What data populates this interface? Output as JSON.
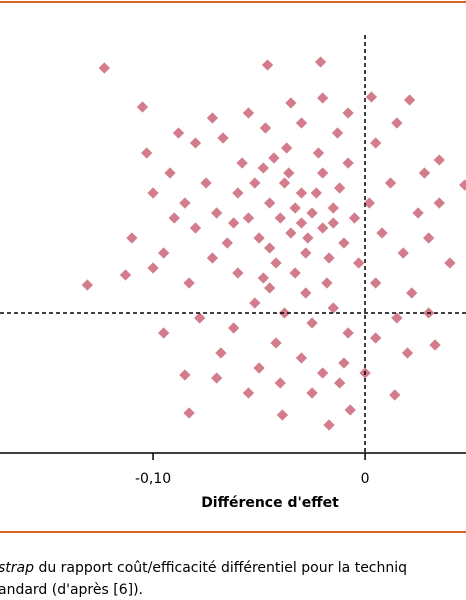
{
  "chart_data": {
    "type": "scatter",
    "color": "#b5263f",
    "x_label": "Différence d'effet",
    "xlim": [
      -0.1722,
      0.0476
    ],
    "ylim": [
      -140,
      310
    ],
    "xticks": [
      {
        "value": -0.1,
        "label": "-0,10"
      },
      0
    ],
    "series": [
      {
        "color": "#b5263f",
        "x": [
          -0.123,
          -0.105,
          -0.046,
          -0.021,
          -0.131,
          -0.083,
          -0.017,
          0.047,
          0.021,
          0.035,
          -0.103,
          -0.113,
          -0.085,
          -0.039,
          -0.007,
          0.014,
          0.033,
          0.003,
          -0.03,
          -0.025,
          -0.035,
          -0.04,
          -0.02,
          -0.045,
          -0.015,
          -0.05,
          -0.03,
          -0.028,
          -0.038,
          -0.01,
          -0.055,
          -0.06,
          -0.02,
          -0.042,
          -0.033,
          -0.012,
          -0.065,
          -0.07,
          -0.005,
          -0.048,
          -0.022,
          -0.037,
          -0.058,
          -0.075,
          -0.08,
          -0.085,
          -0.09,
          0.002,
          0.008,
          0.012,
          0.018,
          0.025,
          0.03,
          -0.003,
          -0.018,
          -0.028,
          -0.045,
          -0.06,
          -0.072,
          -0.052,
          -0.038,
          -0.025,
          -0.015,
          -0.008,
          -0.042,
          -0.062,
          -0.078,
          -0.03,
          -0.05,
          -0.02,
          -0.068,
          -0.01,
          0.005,
          0.015,
          0.022,
          0.005,
          -0.095,
          -0.1,
          -0.092,
          -0.067,
          -0.047,
          -0.03,
          -0.013,
          0.005,
          -0.055,
          -0.035,
          -0.02,
          -0.08,
          -0.088,
          0.015,
          -0.008,
          -0.072,
          0.028,
          0.035,
          0.04,
          0.02,
          0.03,
          -0.04,
          -0.055,
          -0.07,
          -0.025,
          -0.012,
          0.0,
          -0.045,
          -0.027,
          -0.017,
          -0.033,
          -0.052,
          -0.062,
          -0.008,
          -0.043,
          -0.023,
          -0.036,
          -0.015,
          -0.048,
          -0.083,
          -0.1,
          -0.11,
          -0.095
        ],
        "values": [
          245,
          206,
          248,
          251,
          28,
          -100,
          -112,
          128,
          213,
          153,
          160,
          38,
          -62,
          -102,
          -97,
          -82,
          -32,
          216,
          90,
          100,
          80,
          95,
          85,
          110,
          105,
          75,
          120,
          60,
          130,
          70,
          95,
          120,
          140,
          50,
          40,
          125,
          70,
          100,
          95,
          145,
          160,
          165,
          150,
          130,
          85,
          110,
          95,
          110,
          80,
          130,
          60,
          100,
          75,
          50,
          30,
          20,
          25,
          40,
          55,
          10,
          0,
          -10,
          5,
          -20,
          -30,
          -15,
          -5,
          -45,
          -55,
          -60,
          -40,
          -50,
          -25,
          -5,
          20,
          30,
          60,
          120,
          140,
          175,
          185,
          190,
          180,
          170,
          200,
          210,
          215,
          170,
          180,
          190,
          200,
          195,
          140,
          110,
          50,
          -40,
          0,
          -70,
          -80,
          -65,
          -80,
          -70,
          -60,
          65,
          75,
          55,
          105,
          130,
          90,
          150,
          155,
          120,
          140,
          90,
          35,
          30,
          45,
          75,
          -20
        ]
      }
    ]
  },
  "caption": {
    "line1_italic": "strap",
    "line1_rest": " du rapport coût/efficacité différentiel pour la techniq",
    "line2": "andard (d'après [6])."
  }
}
